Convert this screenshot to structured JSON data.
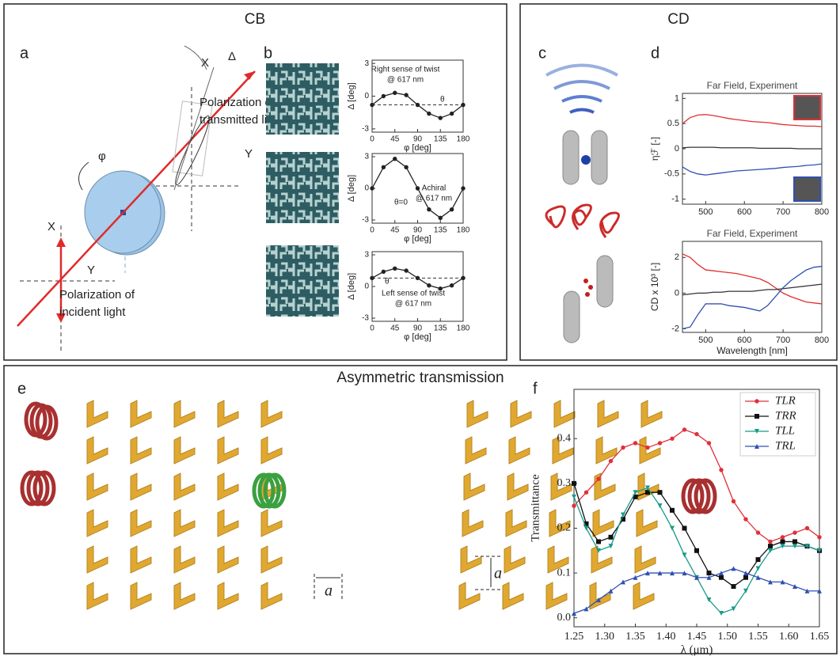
{
  "figure": {
    "cb": {
      "title": "CB",
      "a": {
        "label": "a",
        "transmitted_1": "Polarization of",
        "transmitted_2": "transmitted light",
        "x_top": "X",
        "delta": "Δ",
        "phi": "φ",
        "y_top": "Y",
        "x_bottom": "X",
        "y_bottom": "Y",
        "incident_1": "Polarization of",
        "incident_2": "incident light"
      },
      "b": {
        "label": "b"
      }
    },
    "cd": {
      "title": "CD",
      "c": {
        "label": "c"
      },
      "d": {
        "label": "d"
      }
    },
    "at": {
      "title": "Asymmetric transmission",
      "e": {
        "label": "e",
        "period_x": "a",
        "period_y": "a"
      },
      "f": {
        "label": "f"
      }
    }
  },
  "chart_data": [
    {
      "type": "line",
      "x": [
        0,
        22.5,
        45,
        67.5,
        90,
        112.5,
        135,
        157.5,
        180
      ],
      "series": [
        {
          "color": "#222",
          "marker": "circle",
          "values": [
            -0.8,
            0.0,
            0.3,
            0.1,
            -0.8,
            -1.6,
            -2.0,
            -1.6,
            -0.8
          ]
        }
      ],
      "xlim": [
        0,
        180
      ],
      "xticks": [
        0,
        45,
        90,
        135,
        180
      ],
      "ylim": [
        -3.3,
        3.3
      ],
      "yticks": [
        -3,
        0,
        3
      ],
      "xlabel": "φ [deg]",
      "ylabel": "Δ [deg]",
      "reference_line": -0.8,
      "annotations": [
        "Right  sense of twist",
        "@ 617 nm",
        "θ"
      ]
    },
    {
      "type": "line",
      "x": [
        0,
        22.5,
        45,
        67.5,
        90,
        112.5,
        135,
        157.5,
        180
      ],
      "series": [
        {
          "color": "#222",
          "marker": "circle",
          "values": [
            0,
            2.0,
            2.8,
            2.0,
            0,
            -2.0,
            -2.8,
            -2.0,
            0
          ]
        }
      ],
      "xlim": [
        0,
        180
      ],
      "xticks": [
        0,
        45,
        90,
        135,
        180
      ],
      "ylim": [
        -3.3,
        3.3
      ],
      "yticks": [
        -3,
        0,
        3
      ],
      "xlabel": "φ [deg]",
      "ylabel": "Δ [deg]",
      "annotations": [
        "Achiral",
        "@ 617 nm",
        "θ=0"
      ]
    },
    {
      "type": "line",
      "x": [
        0,
        22.5,
        45,
        67.5,
        90,
        112.5,
        135,
        157.5,
        180
      ],
      "series": [
        {
          "color": "#222",
          "marker": "circle",
          "values": [
            0.8,
            1.4,
            1.7,
            1.5,
            0.8,
            0.1,
            -0.2,
            0.1,
            0.8
          ]
        }
      ],
      "xlim": [
        0,
        180
      ],
      "xticks": [
        0,
        45,
        90,
        135,
        180
      ],
      "ylim": [
        -3.3,
        3.3
      ],
      "yticks": [
        -3,
        0,
        3
      ],
      "xlabel": "φ [deg]",
      "ylabel": "Δ [deg]",
      "reference_line": 0.8,
      "annotations": [
        "θ",
        "Left sense of twist",
        "@ 617 nm"
      ]
    },
    {
      "type": "line",
      "title": "Far Field, Experiment",
      "x": [
        440,
        460,
        480,
        500,
        520,
        540,
        560,
        580,
        600,
        620,
        640,
        660,
        680,
        700,
        720,
        740,
        760,
        780,
        800
      ],
      "series": [
        {
          "color": "#e03030",
          "values": [
            0.5,
            0.62,
            0.67,
            0.68,
            0.66,
            0.63,
            0.6,
            0.58,
            0.56,
            0.54,
            0.53,
            0.52,
            0.5,
            0.48,
            0.47,
            0.46,
            0.45,
            0.45,
            0.44
          ]
        },
        {
          "color": "#333",
          "values": [
            0.02,
            0.03,
            0.03,
            0.03,
            0.03,
            0.02,
            0.02,
            0.02,
            0.02,
            0.02,
            0.01,
            0.01,
            0.01,
            0.01,
            0.01,
            0.0,
            0.0,
            0.0,
            0.0
          ]
        },
        {
          "color": "#3050b0",
          "values": [
            -0.36,
            -0.45,
            -0.5,
            -0.52,
            -0.5,
            -0.48,
            -0.46,
            -0.44,
            -0.43,
            -0.42,
            -0.41,
            -0.4,
            -0.39,
            -0.37,
            -0.36,
            -0.35,
            -0.33,
            -0.32,
            -0.3
          ]
        }
      ],
      "xlim": [
        440,
        800
      ],
      "xticks": [
        500,
        600,
        700,
        800
      ],
      "ylim": [
        -1.1,
        1.1
      ],
      "yticks": [
        -1,
        -0.5,
        0,
        0.5,
        1
      ],
      "ylabel": "ηℱ [-]"
    },
    {
      "type": "line",
      "title": "Far Field, Experiment",
      "x": [
        440,
        460,
        480,
        500,
        520,
        540,
        560,
        580,
        600,
        620,
        640,
        660,
        680,
        700,
        720,
        740,
        760,
        780,
        800
      ],
      "series": [
        {
          "color": "#e03030",
          "values": [
            2.2,
            2.0,
            1.6,
            1.3,
            1.25,
            1.2,
            1.15,
            1.1,
            1.0,
            0.9,
            0.8,
            0.6,
            0.3,
            0.0,
            -0.2,
            -0.35,
            -0.5,
            -0.55,
            -0.6
          ]
        },
        {
          "color": "#333",
          "values": [
            -0.1,
            -0.05,
            0.0,
            0.0,
            0.05,
            0.05,
            0.1,
            0.1,
            0.1,
            0.1,
            0.15,
            0.2,
            0.2,
            0.25,
            0.3,
            0.35,
            0.4,
            0.45,
            0.5
          ]
        },
        {
          "color": "#3050b0",
          "values": [
            -2.0,
            -1.9,
            -1.2,
            -0.6,
            -0.6,
            -0.6,
            -0.7,
            -0.75,
            -0.8,
            -0.9,
            -1.0,
            -0.7,
            -0.2,
            0.3,
            0.7,
            1.0,
            1.3,
            1.45,
            1.5
          ]
        }
      ],
      "xlim": [
        440,
        800
      ],
      "xticks": [
        500,
        600,
        700,
        800
      ],
      "ylim": [
        -2.2,
        2.9
      ],
      "yticks": [
        -2,
        0,
        2
      ],
      "xlabel": "Wavelength [nm]",
      "ylabel": "CD x 10³ [-]"
    },
    {
      "type": "line",
      "x": [
        1.25,
        1.27,
        1.29,
        1.31,
        1.33,
        1.35,
        1.37,
        1.39,
        1.41,
        1.43,
        1.45,
        1.47,
        1.49,
        1.51,
        1.53,
        1.55,
        1.57,
        1.59,
        1.61,
        1.63,
        1.65
      ],
      "series": [
        {
          "name": "TLR",
          "color": "#e0303a",
          "marker": "circle",
          "values": [
            0.25,
            0.28,
            0.31,
            0.35,
            0.38,
            0.39,
            0.38,
            0.39,
            0.4,
            0.42,
            0.41,
            0.39,
            0.33,
            0.26,
            0.22,
            0.19,
            0.17,
            0.18,
            0.19,
            0.2,
            0.18
          ]
        },
        {
          "name": "TRR",
          "color": "#111",
          "marker": "square",
          "values": [
            0.3,
            0.21,
            0.17,
            0.18,
            0.22,
            0.27,
            0.28,
            0.28,
            0.24,
            0.2,
            0.15,
            0.1,
            0.09,
            0.07,
            0.09,
            0.13,
            0.16,
            0.17,
            0.17,
            0.16,
            0.15
          ]
        },
        {
          "name": "TLL",
          "color": "#1a9a8a",
          "marker": "triangle-down",
          "values": [
            0.27,
            0.2,
            0.15,
            0.16,
            0.23,
            0.28,
            0.29,
            0.25,
            0.2,
            0.14,
            0.09,
            0.04,
            0.01,
            0.02,
            0.06,
            0.11,
            0.15,
            0.16,
            0.16,
            0.16,
            0.15
          ]
        },
        {
          "name": "TRL",
          "color": "#3050b0",
          "marker": "triangle-up",
          "values": [
            0.01,
            0.02,
            0.04,
            0.06,
            0.08,
            0.09,
            0.1,
            0.1,
            0.1,
            0.1,
            0.09,
            0.09,
            0.1,
            0.11,
            0.1,
            0.09,
            0.08,
            0.08,
            0.07,
            0.06,
            0.06
          ]
        }
      ],
      "xlim": [
        1.25,
        1.65
      ],
      "xticks": [
        1.25,
        {
          "value": 1.3,
          "label": "1.30"
        },
        1.35,
        {
          "value": 1.4,
          "label": "1.40"
        },
        1.45,
        {
          "value": 1.5,
          "label": "1.50"
        },
        1.55,
        {
          "value": 1.6,
          "label": "1.60"
        },
        1.65
      ],
      "ylim": [
        -0.02,
        0.51
      ],
      "yticks": [
        {
          "value": 0,
          "label": "0.0"
        },
        0.1,
        0.2,
        0.3,
        0.4
      ],
      "xlabel": "λ (μm)",
      "ylabel": "Transmittance",
      "legend": "upper right"
    }
  ]
}
